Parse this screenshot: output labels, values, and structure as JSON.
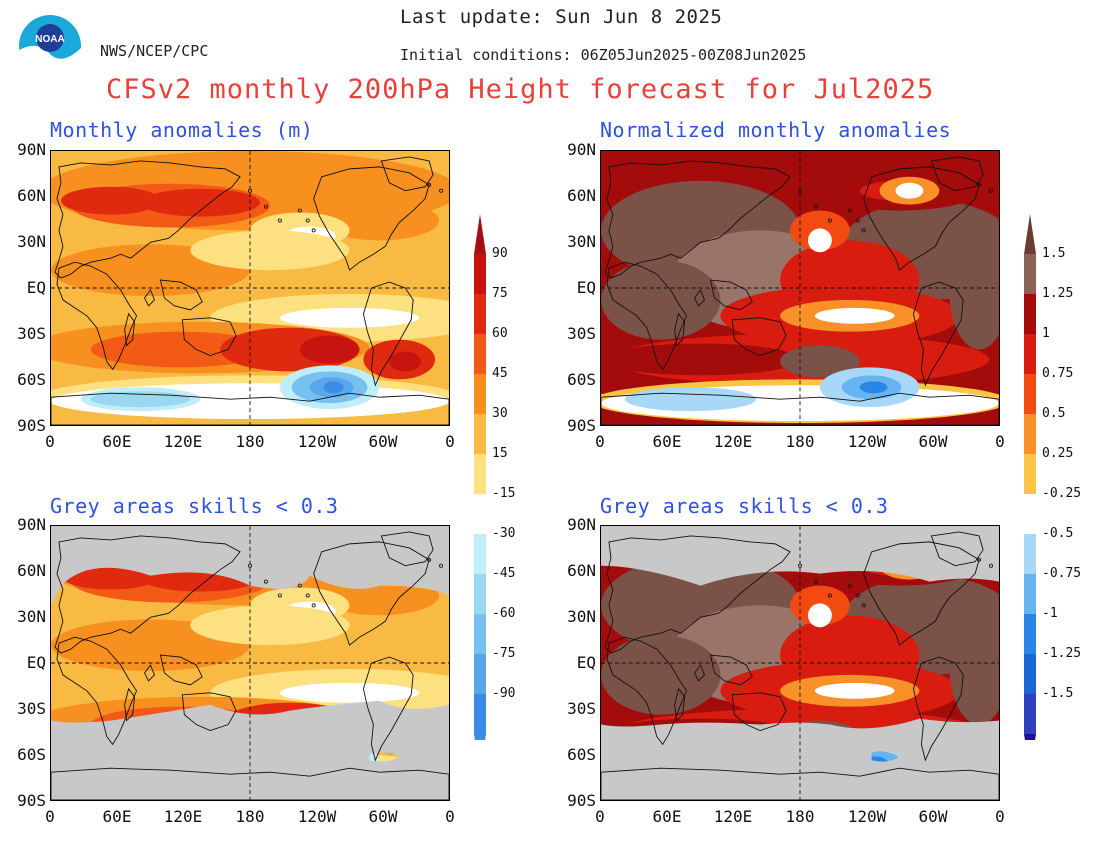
{
  "header": {
    "last_update": "Last update: Sun Jun 8 2025",
    "agency": "NWS/NCEP/CPC",
    "initial_conditions": "Initial conditions: 06Z05Jun2025-00Z08Jun2025",
    "title": "CFSv2 monthly 200hPa Height forecast for Jul2025",
    "logo_text": "NOAA"
  },
  "panels": {
    "top_left": "Monthly anomalies (m)",
    "top_right": "Normalized monthly anomalies",
    "bottom_left": "Grey areas skills < 0.3",
    "bottom_right": "Grey areas skills < 0.3"
  },
  "axes": {
    "lat_labels": [
      "90N",
      "60N",
      "30N",
      "EQ",
      "30S",
      "60S",
      "90S"
    ],
    "lon_labels": [
      "0",
      "60E",
      "120E",
      "180",
      "120W",
      "60W",
      "0"
    ]
  },
  "colorbar_left": {
    "labels": [
      "90",
      "75",
      "60",
      "45",
      "30",
      "15",
      "-15",
      "-30",
      "-45",
      "-60",
      "-75",
      "-90"
    ],
    "colors": {
      "top_arrow": "#a01010",
      "l90": "#c8140e",
      "l75": "#e02a10",
      "l60": "#f25a16",
      "l45": "#f7901e",
      "l30": "#f9ba44",
      "l15": "#fde080",
      "neutral": "#ffffff",
      "n15": "#c0eef8",
      "n30": "#9ad8f2",
      "n45": "#78c0ee",
      "n60": "#5aa6ea",
      "n75": "#3c8ce6",
      "n90": "#1f70e0"
    }
  },
  "colorbar_right": {
    "labels": [
      "1.5",
      "1.25",
      "1",
      "0.75",
      "0.5",
      "0.25",
      "-0.25",
      "-0.5",
      "-0.75",
      "-1",
      "-1.25",
      "-1.5"
    ],
    "colors": {
      "top_arrow": "#6b3c30",
      "p150": "#8c6254",
      "p125": "#a40c0c",
      "p100": "#d81c10",
      "p075": "#f24a10",
      "p050": "#fa9028",
      "p025": "#fbc444",
      "neutral": "#ffffff",
      "n025": "#a8d8f8",
      "n050": "#68b4f0",
      "n075": "#2a86e6",
      "n100": "#1866d8",
      "n125": "#2c40c0",
      "n150": "#5040c8",
      "bottom_arrow": "#2010a0"
    }
  },
  "map_colors": {
    "grey_mask": "#c8c8c8",
    "brown": "#7a5248",
    "brown_light": "#9a7468"
  }
}
